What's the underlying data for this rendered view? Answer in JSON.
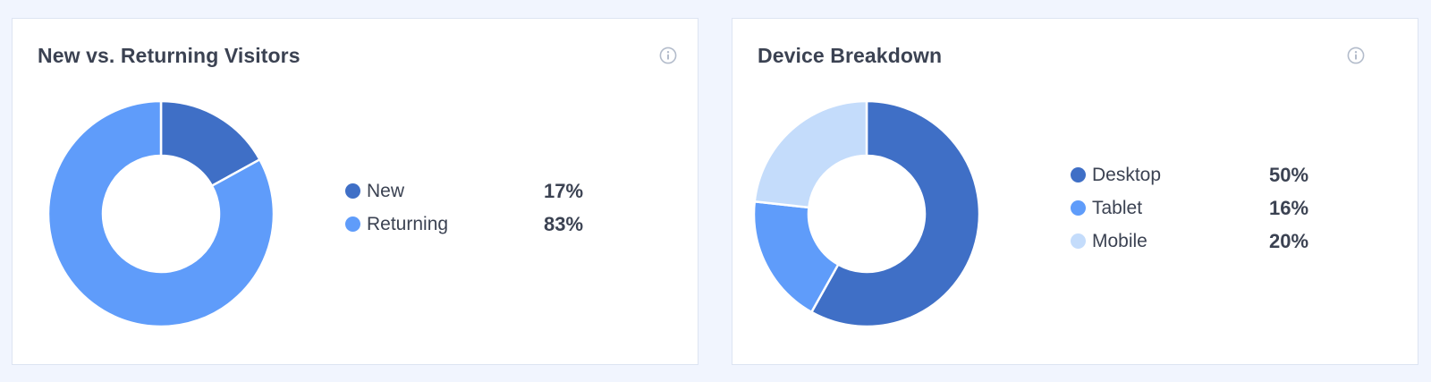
{
  "cards": [
    {
      "title": "New vs. Returning Visitors",
      "info_icon": "info-circle-icon"
    },
    {
      "title": "Device Breakdown",
      "info_icon": "info-circle-icon"
    }
  ],
  "chart_data": [
    {
      "type": "pie",
      "donut": true,
      "title": "New vs. Returning Visitors",
      "slices": [
        {
          "label": "New",
          "value": 17,
          "display": "17%",
          "color": "#3f6fc6"
        },
        {
          "label": "Returning",
          "value": 83,
          "display": "83%",
          "color": "#5f9cfa"
        }
      ],
      "legend_position": "right"
    },
    {
      "type": "pie",
      "donut": true,
      "title": "Device Breakdown",
      "slices": [
        {
          "label": "Desktop",
          "value": 50,
          "display": "50%",
          "color": "#3f6fc6"
        },
        {
          "label": "Tablet",
          "value": 16,
          "display": "16%",
          "color": "#5f9cfa"
        },
        {
          "label": "Mobile",
          "value": 20,
          "display": "20%",
          "color": "#c4dcfb"
        }
      ],
      "legend_position": "right"
    }
  ]
}
